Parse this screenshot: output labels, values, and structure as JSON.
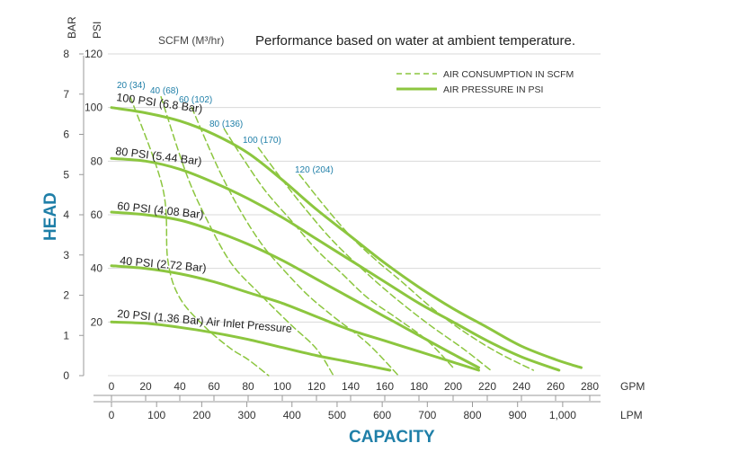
{
  "chart_data": {
    "type": "line",
    "title": "Performance based on water at ambient temperature.",
    "scfm_header": "SCFM (M³/hr)",
    "ylabel": "HEAD",
    "xlabel": "CAPACITY",
    "y_axes": {
      "bar": {
        "unit": "BAR",
        "ticks": [
          "0",
          "1",
          "2",
          "3",
          "4",
          "5",
          "6",
          "7",
          "8"
        ],
        "range": [
          0,
          8
        ]
      },
      "psi": {
        "unit": "PSI",
        "ticks": [
          "20",
          "40",
          "60",
          "80",
          "100",
          "120"
        ],
        "range": [
          0,
          120
        ]
      }
    },
    "x_axes": {
      "gpm": {
        "unit": "GPM",
        "ticks": [
          "0",
          "20",
          "40",
          "60",
          "80",
          "100",
          "120",
          "140",
          "160",
          "180",
          "200",
          "220",
          "240",
          "260",
          "280"
        ],
        "range": [
          0,
          280
        ]
      },
      "lpm": {
        "unit": "LPM",
        "ticks": [
          "0",
          "100",
          "200",
          "300",
          "400",
          "500",
          "600",
          "700",
          "800",
          "900",
          "1,000"
        ],
        "range": [
          0,
          1060
        ]
      }
    },
    "legend": [
      {
        "label": "AIR CONSUMPTION IN SCFM",
        "style": "dashed"
      },
      {
        "label": "AIR PRESSURE IN PSI",
        "style": "solid"
      }
    ],
    "line_color": "#8cc63f",
    "accent_color": "#1f7fa8",
    "series": [
      {
        "name": "AIR PRESSURE IN PSI",
        "style": "solid",
        "label": "100 PSI (6.8 Bar)",
        "x_gpm": [
          0,
          20,
          40,
          60,
          80,
          100,
          120,
          140,
          160,
          180,
          200,
          220,
          240,
          260,
          275
        ],
        "y_psi": [
          100,
          98,
          95,
          90,
          83,
          73,
          62,
          52,
          42,
          33,
          25,
          18,
          11,
          6,
          3
        ]
      },
      {
        "name": "AIR PRESSURE IN PSI",
        "style": "solid",
        "label": "80 PSI (5.44 Bar)",
        "x_gpm": [
          0,
          20,
          40,
          60,
          80,
          100,
          120,
          140,
          160,
          180,
          200,
          220,
          240,
          262
        ],
        "y_psi": [
          81,
          80,
          77,
          72,
          66,
          59,
          51,
          43,
          35,
          27,
          20,
          13,
          7,
          2
        ]
      },
      {
        "name": "AIR PRESSURE IN PSI",
        "style": "solid",
        "label": "60 PSI (4.08 Bar)",
        "x_gpm": [
          0,
          20,
          40,
          60,
          80,
          100,
          120,
          140,
          160,
          180,
          200,
          215
        ],
        "y_psi": [
          61,
          60,
          58,
          54,
          49,
          43,
          36,
          29,
          22,
          15,
          8,
          3
        ]
      },
      {
        "name": "AIR PRESSURE IN PSI",
        "style": "solid",
        "label": "40 PSI (2.72 Bar)",
        "x_gpm": [
          0,
          20,
          40,
          60,
          80,
          100,
          120,
          140,
          160,
          180,
          200,
          215
        ],
        "y_psi": [
          41,
          40,
          38,
          35,
          31,
          27,
          22,
          17,
          13,
          9,
          5,
          2
        ]
      },
      {
        "name": "AIR PRESSURE IN PSI",
        "style": "solid",
        "label": "20 PSI (1.36 Bar) Air Inlet Pressure",
        "x_gpm": [
          0,
          20,
          40,
          60,
          80,
          100,
          120,
          140,
          163
        ],
        "y_psi": [
          20,
          19.5,
          18,
          16,
          13.5,
          10.5,
          7.5,
          5,
          2
        ]
      },
      {
        "name": "AIR CONSUMPTION IN SCFM",
        "style": "dashed",
        "label": "20 (34)",
        "x_gpm": [
          11,
          30,
          33,
          40,
          55,
          70,
          80,
          92
        ],
        "y_psi": [
          104,
          70,
          43,
          29,
          18,
          10,
          6,
          0
        ]
      },
      {
        "name": "AIR CONSUMPTION IN SCFM",
        "style": "dashed",
        "label": "40 (68)",
        "x_gpm": [
          29,
          44,
          56,
          70,
          86,
          105,
          120,
          130
        ],
        "y_psi": [
          104,
          75,
          58,
          42,
          31,
          19,
          10,
          0
        ]
      },
      {
        "name": "AIR CONSUMPTION IN SCFM",
        "style": "dashed",
        "label": "60 (102)",
        "x_gpm": [
          47,
          62,
          75,
          88,
          100,
          115,
          130,
          150,
          168
        ],
        "y_psi": [
          100,
          78,
          62,
          49,
          40,
          30,
          22,
          12,
          0
        ]
      },
      {
        "name": "AIR CONSUMPTION IN SCFM",
        "style": "dashed",
        "label": "80 (136)",
        "x_gpm": [
          66,
          76,
          90,
          105,
          120,
          135,
          150,
          168,
          185,
          200
        ],
        "y_psi": [
          92,
          82,
          69,
          58,
          47,
          38,
          29,
          21,
          13,
          3
        ]
      },
      {
        "name": "AIR CONSUMPTION IN SCFM",
        "style": "dashed",
        "label": "100 (170)",
        "x_gpm": [
          86,
          100,
          115,
          130,
          148,
          166,
          186,
          206,
          222
        ],
        "y_psi": [
          85,
          73,
          61,
          50,
          39,
          29,
          19,
          10,
          2
        ]
      },
      {
        "name": "AIR CONSUMPTION IN SCFM",
        "style": "dashed",
        "label": "120 (204)",
        "x_gpm": [
          110,
          125,
          140,
          155,
          170,
          188,
          205,
          225,
          247
        ],
        "y_psi": [
          75,
          63,
          52,
          43,
          35,
          25,
          17,
          9,
          2
        ]
      }
    ]
  }
}
